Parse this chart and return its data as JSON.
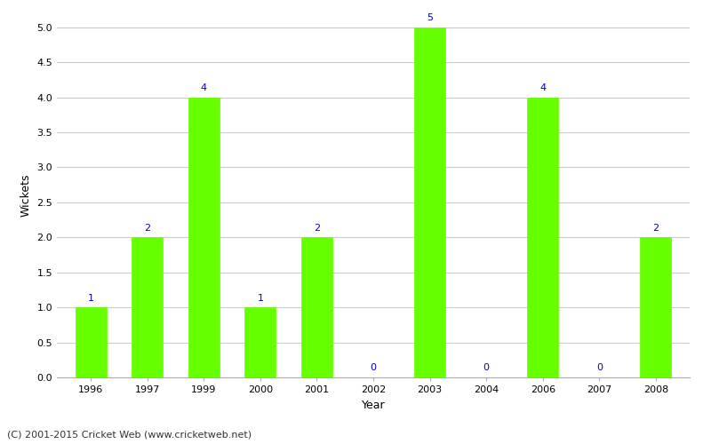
{
  "years": [
    1996,
    1997,
    1999,
    2000,
    2001,
    2002,
    2003,
    2004,
    2006,
    2007,
    2008
  ],
  "wickets": [
    1,
    2,
    4,
    1,
    2,
    0,
    5,
    0,
    4,
    0,
    2
  ],
  "bar_color": "#66ff00",
  "bar_edge_color": "#66ff00",
  "xlabel": "Year",
  "ylabel": "Wickets",
  "ylim": [
    0,
    5.2
  ],
  "yticks": [
    0.0,
    0.5,
    1.0,
    1.5,
    2.0,
    2.5,
    3.0,
    3.5,
    4.0,
    4.5,
    5.0
  ],
  "annotation_color": "#0000cc",
  "annotation_fontsize": 8,
  "xlabel_fontsize": 9,
  "ylabel_fontsize": 9,
  "tick_fontsize": 8,
  "footer_text": "(C) 2001-2015 Cricket Web (www.cricketweb.net)",
  "footer_fontsize": 8,
  "background_color": "#ffffff",
  "grid_color": "#cccccc",
  "bar_width": 0.55
}
